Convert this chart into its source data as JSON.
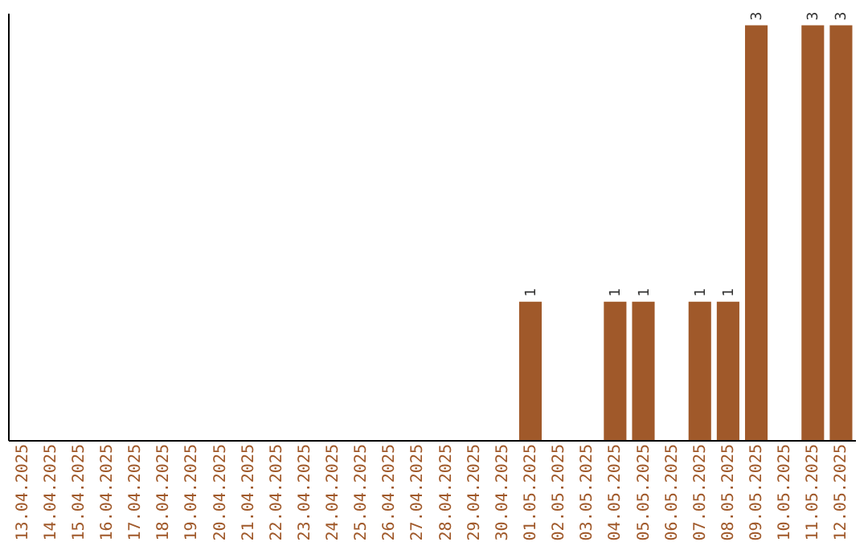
{
  "chart_data": {
    "type": "bar",
    "categories": [
      "13.04.2025",
      "14.04.2025",
      "15.04.2025",
      "16.04.2025",
      "17.04.2025",
      "18.04.2025",
      "19.04.2025",
      "20.04.2025",
      "21.04.2025",
      "22.04.2025",
      "23.04.2025",
      "24.04.2025",
      "25.04.2025",
      "26.04.2025",
      "27.04.2025",
      "28.04.2025",
      "29.04.2025",
      "30.04.2025",
      "01.05.2025",
      "02.05.2025",
      "03.05.2025",
      "04.05.2025",
      "05.05.2025",
      "06.05.2025",
      "07.05.2025",
      "08.05.2025",
      "09.05.2025",
      "10.05.2025",
      "11.05.2025",
      "12.05.2025"
    ],
    "values": [
      null,
      null,
      null,
      null,
      null,
      null,
      null,
      null,
      null,
      null,
      null,
      null,
      null,
      null,
      null,
      null,
      null,
      null,
      1,
      null,
      null,
      1,
      1,
      null,
      1,
      1,
      3,
      null,
      3,
      3
    ],
    "color": "#a0592a",
    "data_labels": true,
    "grid": false
  }
}
